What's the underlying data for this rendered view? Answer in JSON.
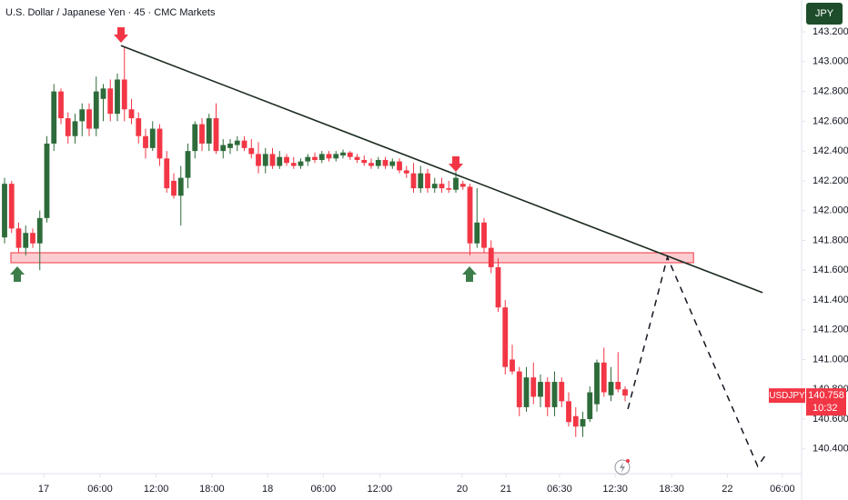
{
  "chart_data": {
    "type": "candlestick",
    "title": "U.S. Dollar / Japanese Yen · 45 · CMC Markets",
    "currency": "JPY",
    "symbol": "USDJPY",
    "countdown": "10:32",
    "up_color": "#2e6b3a",
    "down_color": "#f23645",
    "grid": false,
    "xlim": [
      -0.645,
      112.9
    ],
    "ylim": [
      140.24,
      143.414
    ],
    "xticks": [
      {
        "value": 5.55,
        "label": "17"
      },
      {
        "value": 13.55,
        "label": "06:00"
      },
      {
        "value": 21.5,
        "label": "12:00"
      },
      {
        "value": 29.4,
        "label": "18:00"
      },
      {
        "value": 37.3,
        "label": "18"
      },
      {
        "value": 45.2,
        "label": "06:00"
      },
      {
        "value": 53.2,
        "label": "12:00"
      },
      {
        "value": 64.9,
        "label": "20"
      },
      {
        "value": 71.1,
        "label": "21"
      },
      {
        "value": 78.7,
        "label": "06:30"
      },
      {
        "value": 86.6,
        "label": "12:30"
      },
      {
        "value": 94.6,
        "label": "18:30"
      },
      {
        "value": 102.5,
        "label": "22"
      },
      {
        "value": 110.3,
        "label": "06:00"
      }
    ],
    "yticks": [
      {
        "value": 143.2,
        "label": "143.200"
      },
      {
        "value": 143.0,
        "label": "143.000"
      },
      {
        "value": 142.8,
        "label": "142.800"
      },
      {
        "value": 142.6,
        "label": "142.600"
      },
      {
        "value": 142.4,
        "label": "142.400"
      },
      {
        "value": 142.2,
        "label": "142.200"
      },
      {
        "value": 142.0,
        "label": "142.000"
      },
      {
        "value": 141.8,
        "label": "141.800"
      },
      {
        "value": 141.6,
        "label": "141.600"
      },
      {
        "value": 141.4,
        "label": "141.400"
      },
      {
        "value": 141.2,
        "label": "141.200"
      },
      {
        "value": 141.0,
        "label": "141.000"
      },
      {
        "value": 140.8,
        "label": "140.800"
      },
      {
        "value": 140.6,
        "label": "140.600"
      },
      {
        "value": 140.4,
        "label": "140.400"
      }
    ],
    "ohlc": [
      [
        141.82,
        142.22,
        141.78,
        142.18
      ],
      [
        142.18,
        142.2,
        141.85,
        141.88
      ],
      [
        141.88,
        141.92,
        141.72,
        141.75
      ],
      [
        141.75,
        141.9,
        141.7,
        141.85
      ],
      [
        141.85,
        141.88,
        141.75,
        141.78
      ],
      [
        141.78,
        142.0,
        141.6,
        141.95
      ],
      [
        141.95,
        142.5,
        141.92,
        142.45
      ],
      [
        142.45,
        142.85,
        142.4,
        142.8
      ],
      [
        142.8,
        142.82,
        142.58,
        142.62
      ],
      [
        142.62,
        142.66,
        142.45,
        142.5
      ],
      [
        142.5,
        142.65,
        142.45,
        142.6
      ],
      [
        142.6,
        142.72,
        142.5,
        142.68
      ],
      [
        142.68,
        142.72,
        142.5,
        142.55
      ],
      [
        142.55,
        142.9,
        142.5,
        142.8
      ],
      [
        142.75,
        142.85,
        142.6,
        142.82
      ],
      [
        142.82,
        142.88,
        142.6,
        142.65
      ],
      [
        142.65,
        142.92,
        142.6,
        142.88
      ],
      [
        142.88,
        143.1,
        142.6,
        142.68
      ],
      [
        142.68,
        142.75,
        142.58,
        142.62
      ],
      [
        142.62,
        142.66,
        142.45,
        142.5
      ],
      [
        142.5,
        142.55,
        142.35,
        142.42
      ],
      [
        142.42,
        142.6,
        142.4,
        142.55
      ],
      [
        142.55,
        142.58,
        142.3,
        142.35
      ],
      [
        142.35,
        142.4,
        142.12,
        142.15
      ],
      [
        142.2,
        142.25,
        142.08,
        142.1
      ],
      [
        142.1,
        142.3,
        141.9,
        142.22
      ],
      [
        142.22,
        142.45,
        142.15,
        142.4
      ],
      [
        142.4,
        142.6,
        142.35,
        142.58
      ],
      [
        142.58,
        142.62,
        142.4,
        142.45
      ],
      [
        142.45,
        142.65,
        142.4,
        142.62
      ],
      [
        142.62,
        142.72,
        142.38,
        142.4
      ],
      [
        142.4,
        142.48,
        142.35,
        142.44
      ],
      [
        142.42,
        142.48,
        142.38,
        142.45
      ],
      [
        142.44,
        142.5,
        142.4,
        142.47
      ],
      [
        142.47,
        142.5,
        142.4,
        142.42
      ],
      [
        142.42,
        142.48,
        142.35,
        142.38
      ],
      [
        142.38,
        142.46,
        142.25,
        142.3
      ],
      [
        142.3,
        142.42,
        142.25,
        142.38
      ],
      [
        142.38,
        142.42,
        142.28,
        142.3
      ],
      [
        142.3,
        142.4,
        142.28,
        142.36
      ],
      [
        142.36,
        142.38,
        142.3,
        142.32
      ],
      [
        142.32,
        142.36,
        142.28,
        142.3
      ],
      [
        142.3,
        142.35,
        142.28,
        142.33
      ],
      [
        142.33,
        142.38,
        142.3,
        142.36
      ],
      [
        142.36,
        142.39,
        142.32,
        142.34
      ],
      [
        142.34,
        142.4,
        142.32,
        142.38
      ],
      [
        142.38,
        142.4,
        142.33,
        142.35
      ],
      [
        142.35,
        142.4,
        142.33,
        142.38
      ],
      [
        142.37,
        142.41,
        142.35,
        142.39
      ],
      [
        142.39,
        142.4,
        142.34,
        142.36
      ],
      [
        142.36,
        142.38,
        142.32,
        142.34
      ],
      [
        142.34,
        142.37,
        142.3,
        142.32
      ],
      [
        142.32,
        142.35,
        142.28,
        142.3
      ],
      [
        142.3,
        142.36,
        142.28,
        142.34
      ],
      [
        142.34,
        142.36,
        142.28,
        142.3
      ],
      [
        142.3,
        142.35,
        142.28,
        142.33
      ],
      [
        142.33,
        142.35,
        142.25,
        142.27
      ],
      [
        142.27,
        142.3,
        142.22,
        142.25
      ],
      [
        142.25,
        142.32,
        142.12,
        142.15
      ],
      [
        142.15,
        142.3,
        142.12,
        142.25
      ],
      [
        142.25,
        142.28,
        142.12,
        142.15
      ],
      [
        142.15,
        142.22,
        142.12,
        142.18
      ],
      [
        142.18,
        142.22,
        142.12,
        142.15
      ],
      [
        142.15,
        142.2,
        142.12,
        142.14
      ],
      [
        142.14,
        142.26,
        142.12,
        142.22
      ],
      [
        142.18,
        142.2,
        142.14,
        142.16
      ],
      [
        142.16,
        142.18,
        141.7,
        141.78
      ],
      [
        141.78,
        142.15,
        141.75,
        141.92
      ],
      [
        141.92,
        141.95,
        141.72,
        141.75
      ],
      [
        141.75,
        141.8,
        141.58,
        141.62
      ],
      [
        141.62,
        141.68,
        141.32,
        141.35
      ],
      [
        141.35,
        141.4,
        140.9,
        140.95
      ],
      [
        141.0,
        141.1,
        140.9,
        140.92
      ],
      [
        140.92,
        140.95,
        140.62,
        140.68
      ],
      [
        140.68,
        140.95,
        140.65,
        140.88
      ],
      [
        140.88,
        140.98,
        140.7,
        140.75
      ],
      [
        140.75,
        140.9,
        140.68,
        140.85
      ],
      [
        140.85,
        140.88,
        140.62,
        140.68
      ],
      [
        140.68,
        140.92,
        140.62,
        140.85
      ],
      [
        140.85,
        140.88,
        140.68,
        140.72
      ],
      [
        140.72,
        140.78,
        140.55,
        140.58
      ],
      [
        140.62,
        140.68,
        140.48,
        140.55
      ],
      [
        140.55,
        140.65,
        140.48,
        140.6
      ],
      [
        140.6,
        140.82,
        140.58,
        140.78
      ],
      [
        140.7,
        141.0,
        140.65,
        140.98
      ],
      [
        140.98,
        141.08,
        140.75,
        140.78
      ],
      [
        140.76,
        140.95,
        140.72,
        140.85
      ],
      [
        140.85,
        141.05,
        140.78,
        140.8
      ],
      [
        140.8,
        140.82,
        140.72,
        140.758
      ]
    ],
    "trendline": {
      "x": [
        16.5,
        107.5
      ],
      "y": [
        143.108,
        141.449
      ]
    },
    "support_zone": {
      "x": [
        0.9,
        97.7
      ],
      "y": [
        141.65,
        141.717
      ]
    },
    "projection": {
      "x": [
        88.4,
        94,
        106.8,
        108
      ],
      "y": [
        140.668,
        141.687,
        140.284,
        140.363
      ]
    }
  }
}
